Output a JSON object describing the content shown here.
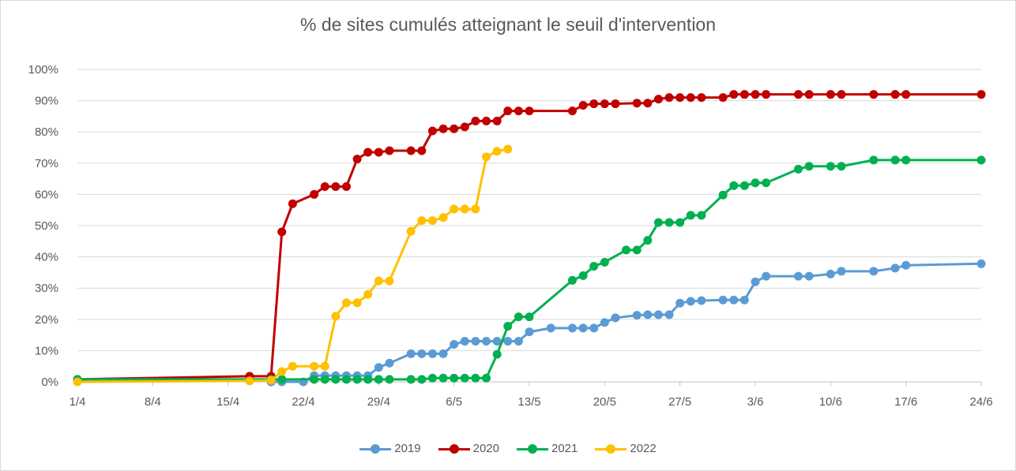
{
  "chart_data": {
    "type": "line",
    "title": "% de sites cumulés atteignant le seuil d'intervention",
    "xlabel": "",
    "ylabel": "",
    "x_ticks": [
      "1/4",
      "8/4",
      "15/4",
      "22/4",
      "29/4",
      "6/5",
      "13/5",
      "20/5",
      "27/5",
      "3/6",
      "10/6",
      "17/6",
      "24/6"
    ],
    "x_tick_days": [
      0,
      7,
      14,
      21,
      28,
      35,
      42,
      49,
      56,
      63,
      70,
      77,
      84
    ],
    "xlim": [
      0,
      84
    ],
    "y_ticks": [
      "0%",
      "10%",
      "20%",
      "30%",
      "40%",
      "50%",
      "60%",
      "70%",
      "80%",
      "90%",
      "100%"
    ],
    "ylim": [
      0,
      100
    ],
    "grid": "horizontal",
    "legend_position": "bottom",
    "series": [
      {
        "name": "2019",
        "color": "#5b9bd5",
        "x": [
          18,
          19,
          21,
          22,
          23,
          24,
          25,
          26,
          27,
          28,
          29,
          31,
          32,
          33,
          34,
          35,
          36,
          37,
          38,
          39,
          40,
          41,
          42,
          44,
          46,
          47,
          48,
          49,
          50,
          52,
          53,
          54,
          55,
          56,
          57,
          58,
          60,
          61,
          62,
          63,
          64,
          67,
          68,
          70,
          71,
          74,
          76,
          77,
          84
        ],
        "y": [
          0,
          0,
          0,
          2,
          2,
          2,
          2,
          2,
          2,
          4.6,
          6,
          9,
          9,
          9,
          9,
          12,
          13,
          13,
          13,
          13,
          13,
          13,
          16,
          17.2,
          17.2,
          17.2,
          17.2,
          19,
          20.5,
          21.3,
          21.5,
          21.5,
          21.5,
          25.2,
          25.8,
          26,
          26.2,
          26.2,
          26.2,
          32,
          33.8,
          33.8,
          33.8,
          34.5,
          35.4,
          35.4,
          36.4,
          37.3,
          37.8
        ]
      },
      {
        "name": "2020",
        "color": "#c00000",
        "x": [
          0,
          16,
          18,
          19,
          20,
          22,
          23,
          24,
          25,
          26,
          27,
          28,
          29,
          31,
          32,
          33,
          34,
          35,
          36,
          37,
          38,
          39,
          40,
          41,
          42,
          46,
          47,
          48,
          49,
          50,
          52,
          53,
          54,
          55,
          56,
          57,
          58,
          60,
          61,
          62,
          63,
          64,
          67,
          68,
          70,
          71,
          74,
          76,
          77,
          84
        ],
        "y": [
          0.8,
          1.8,
          1.8,
          48,
          57,
          60,
          62.5,
          62.5,
          62.5,
          71.3,
          73.5,
          73.5,
          74,
          74,
          74,
          80.3,
          81,
          81,
          81.6,
          83.5,
          83.5,
          83.5,
          86.7,
          86.7,
          86.7,
          86.7,
          88.5,
          89,
          89,
          89,
          89.2,
          89.2,
          90.5,
          91,
          91,
          91,
          91,
          91,
          92,
          92,
          92,
          92,
          92,
          92,
          92,
          92,
          92,
          92,
          92,
          92
        ]
      },
      {
        "name": "2021",
        "color": "#00b050",
        "x": [
          0,
          18,
          19,
          22,
          23,
          24,
          25,
          26,
          27,
          28,
          29,
          31,
          32,
          33,
          34,
          35,
          36,
          37,
          38,
          39,
          40,
          41,
          42,
          46,
          47,
          48,
          49,
          51,
          52,
          53,
          54,
          55,
          56,
          57,
          58,
          60,
          61,
          62,
          63,
          64,
          67,
          68,
          70,
          71,
          74,
          76,
          77,
          84
        ],
        "y": [
          0.8,
          0.8,
          0.8,
          0.8,
          0.8,
          0.8,
          0.8,
          0.8,
          0.8,
          0.8,
          0.8,
          0.8,
          0.8,
          1.2,
          1.2,
          1.2,
          1.2,
          1.2,
          1.2,
          8.8,
          17.8,
          20.8,
          20.8,
          32.5,
          34,
          37,
          38.3,
          42.2,
          42.2,
          45.3,
          51,
          51,
          51,
          53.3,
          53.3,
          59.8,
          62.8,
          62.8,
          63.7,
          63.7,
          68.1,
          69,
          69,
          69,
          71,
          71,
          71,
          71
        ]
      },
      {
        "name": "2022",
        "color": "#ffc000",
        "x": [
          0,
          16,
          18,
          19,
          20,
          22,
          23,
          24,
          25,
          26,
          27,
          28,
          29,
          31,
          32,
          33,
          34,
          35,
          36,
          37,
          38,
          39,
          40
        ],
        "y": [
          0,
          0.3,
          0.5,
          3.3,
          5,
          5,
          5,
          21,
          25.3,
          25.3,
          28,
          32.3,
          32.3,
          48.2,
          51.6,
          51.6,
          52.6,
          55.3,
          55.3,
          55.3,
          72,
          73.8,
          74.5
        ]
      }
    ]
  }
}
